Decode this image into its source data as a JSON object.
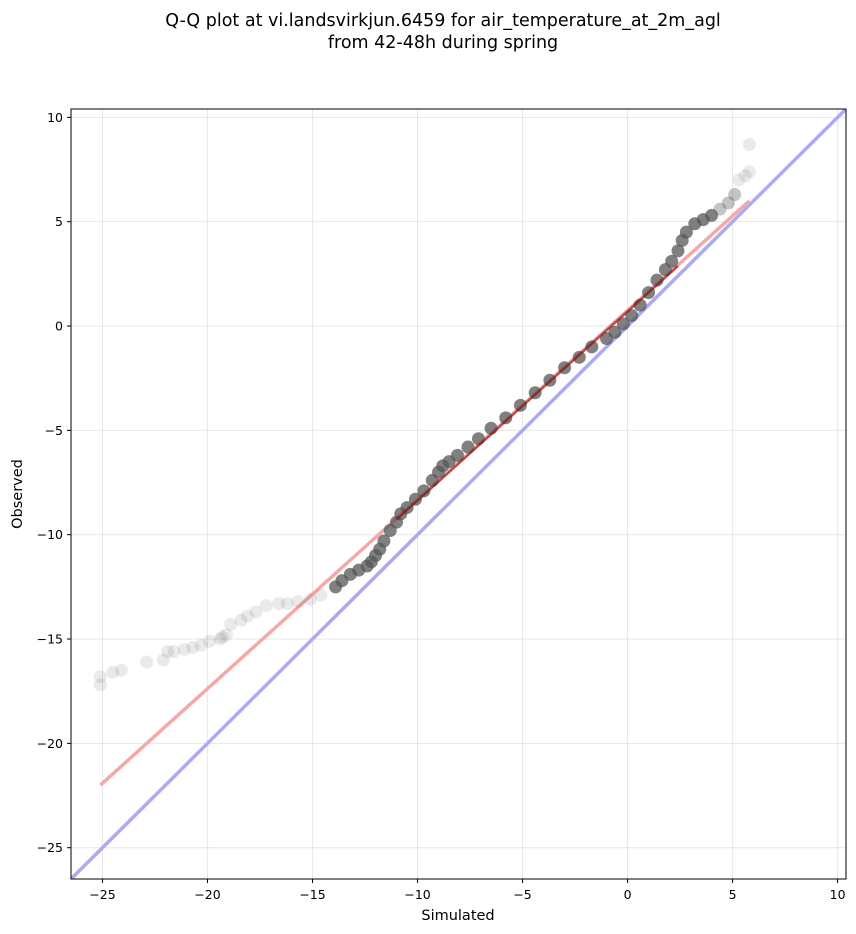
{
  "chart_data": {
    "type": "scatter",
    "title": "Q-Q plot at vi.landsvirkjun.6459 for air_temperature_at_2m_agl",
    "subtitle": "from 42-48h during spring",
    "xlabel": "Simulated",
    "ylabel": "Observed",
    "xlim": [
      -26.5,
      10.4
    ],
    "ylim": [
      -26.5,
      10.4
    ],
    "xticks": [
      -25,
      -20,
      -15,
      -10,
      -5,
      0,
      5,
      10
    ],
    "yticks": [
      -25,
      -20,
      -15,
      -10,
      -5,
      0,
      5,
      10
    ],
    "xtick_labels": [
      "−25",
      "−20",
      "−15",
      "−10",
      "−5",
      "0",
      "5",
      "10"
    ],
    "ytick_labels": [
      "−25",
      "−20",
      "−15",
      "−10",
      "−5",
      "0",
      "5",
      "10"
    ],
    "grid": true,
    "colors": {
      "points": "#555555",
      "identity_line": "#aaaaf5",
      "fit_line_light": "#f5a8a8",
      "fit_line_dark": "#8b0000"
    },
    "reference_lines": [
      {
        "kind": "identity",
        "x": [
          -26.5,
          10.4
        ],
        "y": [
          -26.5,
          10.4
        ]
      },
      {
        "kind": "fit",
        "x": [
          -25.1,
          5.8
        ],
        "y": [
          -22.0,
          6.0
        ]
      }
    ],
    "quantile_points": {
      "x": [
        -25.1,
        -25.1,
        -24.5,
        -24.1,
        -22.9,
        -22.1,
        -21.9,
        -21.6,
        -21.1,
        -20.7,
        -20.3,
        -19.9,
        -19.4,
        -19.3,
        -19.1,
        -18.9,
        -18.4,
        -18.1,
        -17.7,
        -17.2,
        -16.6,
        -16.2,
        -15.7,
        -15.1,
        -14.6,
        -13.9,
        -13.6,
        -13.2,
        -12.8,
        -12.4,
        -12.2,
        -12.0,
        -11.8,
        -11.6,
        -11.3,
        -11.0,
        -10.8,
        -10.5,
        -10.1,
        -9.7,
        -9.3,
        -9.0,
        -8.8,
        -8.5,
        -8.1,
        -7.6,
        -7.1,
        -6.5,
        -5.8,
        -5.1,
        -4.4,
        -3.7,
        -3.0,
        -2.3,
        -1.7,
        -1.0,
        -0.6,
        -0.2,
        0.2,
        0.6,
        1.0,
        1.4,
        1.8,
        2.1,
        2.4,
        2.6,
        2.8,
        3.2,
        3.6,
        4.0,
        4.4,
        4.8,
        5.1,
        5.3,
        5.6,
        5.8,
        5.8
      ],
      "y": [
        -16.8,
        -17.2,
        -16.6,
        -16.5,
        -16.1,
        -16.0,
        -15.6,
        -15.6,
        -15.5,
        -15.4,
        -15.3,
        -15.1,
        -15.0,
        -14.9,
        -14.8,
        -14.3,
        -14.1,
        -13.9,
        -13.7,
        -13.4,
        -13.3,
        -13.3,
        -13.2,
        -13.1,
        -12.9,
        -12.5,
        -12.2,
        -11.9,
        -11.7,
        -11.5,
        -11.3,
        -11.0,
        -10.7,
        -10.3,
        -9.8,
        -9.4,
        -9.0,
        -8.7,
        -8.3,
        -7.9,
        -7.4,
        -7.0,
        -6.7,
        -6.5,
        -6.2,
        -5.8,
        -5.4,
        -4.9,
        -4.4,
        -3.8,
        -3.2,
        -2.6,
        -2.0,
        -1.5,
        -1.0,
        -0.6,
        -0.3,
        0.1,
        0.5,
        1.0,
        1.6,
        2.2,
        2.7,
        3.1,
        3.6,
        4.1,
        4.5,
        4.9,
        5.1,
        5.3,
        5.6,
        5.9,
        6.3,
        7.0,
        7.2,
        7.4,
        8.7
      ]
    }
  }
}
